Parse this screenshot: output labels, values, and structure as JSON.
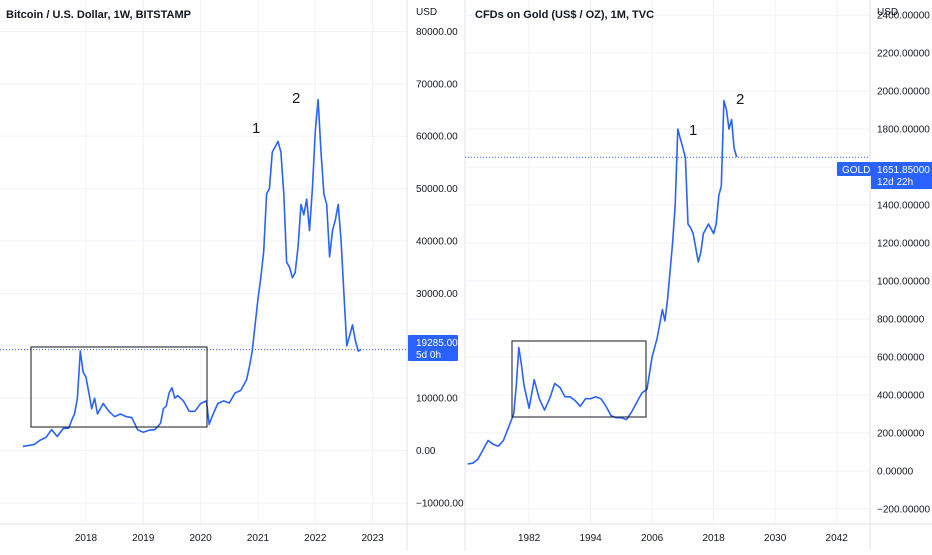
{
  "chart_data": [
    {
      "type": "line",
      "title": "Bitcoin / U.S. Dollar, 1W, BITSTAMP",
      "unit_label": "USD",
      "y_ticks": [
        "80000.00",
        "70000.00",
        "60000.00",
        "50000.00",
        "40000.00",
        "30000.00",
        "20000.00",
        "10000.00",
        "0.00",
        "−10000.00"
      ],
      "x_ticks": [
        "2018",
        "2019",
        "2020",
        "2021",
        "2022",
        "2023"
      ],
      "grid": true,
      "last_price": "19285.00",
      "countdown": "5d 0h",
      "annotations": [
        "1",
        "2"
      ],
      "series_color": "#2962ff",
      "x": [
        2016.9,
        2017.0,
        2017.1,
        2017.2,
        2017.3,
        2017.4,
        2017.5,
        2017.6,
        2017.7,
        2017.75,
        2017.8,
        2017.85,
        2017.9,
        2017.95,
        2018.0,
        2018.05,
        2018.1,
        2018.15,
        2018.2,
        2018.3,
        2018.4,
        2018.5,
        2018.6,
        2018.7,
        2018.8,
        2018.9,
        2019.0,
        2019.1,
        2019.2,
        2019.3,
        2019.35,
        2019.4,
        2019.45,
        2019.5,
        2019.55,
        2019.6,
        2019.7,
        2019.8,
        2019.9,
        2020.0,
        2020.1,
        2020.15,
        2020.2,
        2020.3,
        2020.4,
        2020.5,
        2020.6,
        2020.7,
        2020.8,
        2020.85,
        2020.9,
        2020.95,
        2021.0,
        2021.05,
        2021.1,
        2021.15,
        2021.2,
        2021.25,
        2021.3,
        2021.35,
        2021.4,
        2021.45,
        2021.5,
        2021.55,
        2021.6,
        2021.65,
        2021.7,
        2021.75,
        2021.8,
        2021.85,
        2021.9,
        2021.95,
        2022.0,
        2022.05,
        2022.1,
        2022.15,
        2022.2,
        2022.25,
        2022.3,
        2022.35,
        2022.4,
        2022.45,
        2022.5,
        2022.55,
        2022.6,
        2022.65,
        2022.7,
        2022.75,
        2022.8
      ],
      "values": [
        800,
        1000,
        1200,
        2000,
        2500,
        4000,
        2700,
        4200,
        4300,
        5800,
        7000,
        10000,
        19000,
        15000,
        14000,
        11000,
        8000,
        10000,
        7000,
        9000,
        7500,
        6500,
        7000,
        6500,
        6300,
        4000,
        3500,
        3900,
        4000,
        5200,
        8000,
        8500,
        11000,
        12000,
        10000,
        10500,
        9500,
        7500,
        7500,
        9000,
        9500,
        5000,
        6500,
        9000,
        9500,
        9100,
        11000,
        11500,
        13500,
        16000,
        19000,
        24000,
        29000,
        33000,
        38000,
        49000,
        50000,
        57000,
        58000,
        59000,
        57000,
        49000,
        36000,
        35000,
        33000,
        34000,
        39000,
        47000,
        45000,
        48000,
        42000,
        50000,
        61000,
        67000,
        57000,
        49000,
        47000,
        37000,
        42000,
        44000,
        47000,
        40000,
        30000,
        20000,
        22000,
        24000,
        21000,
        19000,
        19285
      ],
      "ylim": [
        -14000,
        86000
      ],
      "xlim": [
        2016.5,
        2023.6
      ]
    },
    {
      "type": "line",
      "title": "CFDs on Gold (US$ / OZ), 1M, TVC",
      "unit_label": "USD",
      "y_ticks": [
        "2400.00000",
        "2200.00000",
        "2000.00000",
        "1800.00000",
        "1600.00000",
        "1400.00000",
        "1200.00000",
        "1000.00000",
        "800.00000",
        "600.00000",
        "400.00000",
        "200.00000",
        "0.00000",
        "−200.00000"
      ],
      "x_ticks": [
        "1982",
        "1994",
        "2006",
        "2018",
        "2030",
        "2042"
      ],
      "grid": true,
      "symbol": "GOLD",
      "last_price": "1651.85000",
      "countdown": "12d 22h",
      "annotations": [
        "1",
        "2"
      ],
      "series_color": "#2962ff",
      "x": [
        1970,
        1971,
        1972,
        1973,
        1974,
        1975,
        1976,
        1977,
        1978,
        1979,
        1979.5,
        1980,
        1980.5,
        1981,
        1982,
        1983,
        1984,
        1985,
        1986,
        1987,
        1988,
        1989,
        1990,
        1991,
        1992,
        1993,
        1994,
        1995,
        1996,
        1997,
        1998,
        1999,
        2000,
        2001,
        2002,
        2003,
        2004,
        2005,
        2006,
        2007,
        2008,
        2008.5,
        2009,
        2010,
        2010.5,
        2011,
        2011.5,
        2012,
        2012.5,
        2013,
        2013.5,
        2014,
        2015,
        2015.5,
        2016,
        2017,
        2018,
        2018.5,
        2019,
        2019.5,
        2020,
        2020.5,
        2021,
        2021.5,
        2022,
        2022.5
      ],
      "values": [
        36,
        40,
        60,
        110,
        160,
        140,
        130,
        160,
        230,
        300,
        450,
        650,
        560,
        450,
        330,
        480,
        380,
        320,
        380,
        460,
        440,
        390,
        390,
        370,
        340,
        380,
        380,
        390,
        380,
        340,
        290,
        280,
        280,
        270,
        310,
        360,
        410,
        430,
        600,
        700,
        850,
        790,
        900,
        1200,
        1400,
        1800,
        1750,
        1700,
        1650,
        1300,
        1280,
        1250,
        1100,
        1150,
        1250,
        1300,
        1250,
        1300,
        1450,
        1500,
        1950,
        1900,
        1800,
        1850,
        1700,
        1651.85
      ],
      "ylim": [
        -280,
        2480
      ],
      "xlim": [
        1969.5,
        2048.5
      ]
    }
  ]
}
